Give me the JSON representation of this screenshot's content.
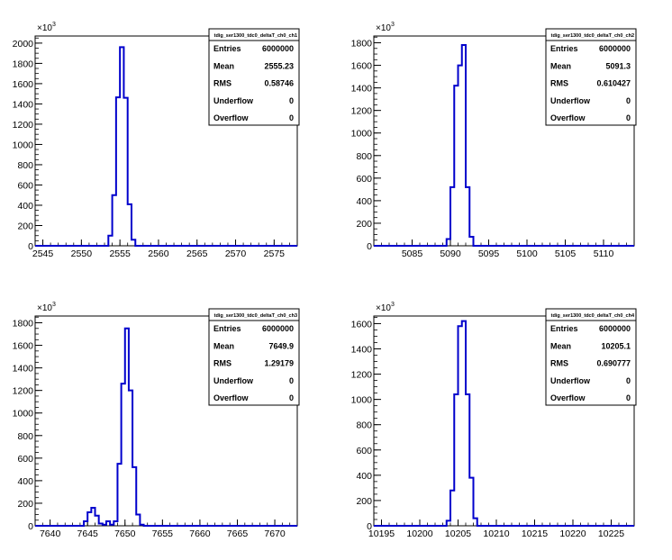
{
  "exponent_label": "×10",
  "exponent_power": "3",
  "stat_labels": [
    "Entries",
    "Mean",
    "RMS",
    "Underflow",
    "Overflow"
  ],
  "chart_data": [
    {
      "type": "histogram",
      "title": "tdig_ser1300_tdc0_deltaT_ch0_ch1",
      "xlim": [
        2544,
        2578
      ],
      "ylim": [
        0,
        2070
      ],
      "y_ticks": [
        0,
        200,
        400,
        600,
        800,
        1000,
        1200,
        1400,
        1600,
        1800,
        2000
      ],
      "y_tick_labels": [
        "0",
        "200",
        "400",
        "600",
        "800",
        "1000",
        "1200",
        "1400",
        "1600",
        "1800",
        "2000"
      ],
      "x_ticks": [
        2545,
        2550,
        2555,
        2560,
        2565,
        2570,
        2575
      ],
      "x_minor_step": 1,
      "y_minor_step": 50,
      "bin_width": 0.5,
      "bins": [
        [
          2553.5,
          100
        ],
        [
          2554.0,
          500
        ],
        [
          2554.5,
          1465
        ],
        [
          2555.0,
          1960
        ],
        [
          2555.5,
          1460
        ],
        [
          2556.0,
          410
        ],
        [
          2556.5,
          60
        ]
      ],
      "stats": {
        "Entries": "6000000",
        "Mean": "2555.23",
        "RMS": "0.58746",
        "Underflow": "0",
        "Overflow": "0"
      }
    },
    {
      "type": "histogram",
      "title": "tdig_ser1300_tdc0_deltaT_ch0_ch2",
      "xlim": [
        5080,
        5114
      ],
      "ylim": [
        0,
        1860
      ],
      "y_ticks": [
        0,
        200,
        400,
        600,
        800,
        1000,
        1200,
        1400,
        1600,
        1800
      ],
      "y_tick_labels": [
        "0",
        "200",
        "400",
        "600",
        "800",
        "1000",
        "1200",
        "1400",
        "1600",
        "1800"
      ],
      "x_ticks": [
        5085,
        5090,
        5095,
        5100,
        5105,
        5110
      ],
      "x_minor_step": 1,
      "y_minor_step": 50,
      "bin_width": 0.5,
      "bins": [
        [
          5089.5,
          60
        ],
        [
          5090.0,
          520
        ],
        [
          5090.5,
          1420
        ],
        [
          5091.0,
          1600
        ],
        [
          5091.5,
          1780
        ],
        [
          5092.0,
          520
        ],
        [
          5092.5,
          80
        ]
      ],
      "stats": {
        "Entries": "6000000",
        "Mean": "5091.3",
        "RMS": "0.610427",
        "Underflow": "0",
        "Overflow": "0"
      }
    },
    {
      "type": "histogram",
      "title": "tdig_ser1300_tdc0_deltaT_ch0_ch3",
      "xlim": [
        7638,
        7673
      ],
      "ylim": [
        0,
        1860
      ],
      "y_ticks": [
        0,
        200,
        400,
        600,
        800,
        1000,
        1200,
        1400,
        1600,
        1800
      ],
      "y_tick_labels": [
        "0",
        "200",
        "400",
        "600",
        "800",
        "1000",
        "1200",
        "1400",
        "1600",
        "1800"
      ],
      "x_ticks": [
        7640,
        7645,
        7650,
        7655,
        7660,
        7665,
        7670
      ],
      "x_minor_step": 1,
      "y_minor_step": 50,
      "bin_width": 0.5,
      "bins": [
        [
          7644.5,
          40
        ],
        [
          7645.0,
          120
        ],
        [
          7645.5,
          160
        ],
        [
          7646.0,
          90
        ],
        [
          7646.5,
          20
        ],
        [
          7647.0,
          10
        ],
        [
          7647.5,
          40
        ],
        [
          7648.0,
          10
        ],
        [
          7648.5,
          40
        ],
        [
          7649.0,
          550
        ],
        [
          7649.5,
          1260
        ],
        [
          7650.0,
          1750
        ],
        [
          7650.5,
          1200
        ],
        [
          7651.0,
          520
        ],
        [
          7651.5,
          100
        ],
        [
          7652.0,
          10
        ]
      ],
      "stats": {
        "Entries": "6000000",
        "Mean": "7649.9",
        "RMS": "1.29179",
        "Underflow": "0",
        "Overflow": "0"
      }
    },
    {
      "type": "histogram",
      "title": "tdig_ser1300_tdc0_deltaT_ch0_ch4",
      "xlim": [
        10194,
        10228
      ],
      "ylim": [
        0,
        1660
      ],
      "y_ticks": [
        0,
        200,
        400,
        600,
        800,
        1000,
        1200,
        1400,
        1600
      ],
      "y_tick_labels": [
        "0",
        "200",
        "400",
        "600",
        "800",
        "1000",
        "1200",
        "1400",
        "1600"
      ],
      "x_ticks": [
        10195,
        10200,
        10205,
        10210,
        10215,
        10220,
        10225
      ],
      "x_minor_step": 1,
      "y_minor_step": 50,
      "bin_width": 0.5,
      "bins": [
        [
          10203.5,
          40
        ],
        [
          10204.0,
          280
        ],
        [
          10204.5,
          1040
        ],
        [
          10205.0,
          1580
        ],
        [
          10205.5,
          1620
        ],
        [
          10206.0,
          1040
        ],
        [
          10206.5,
          380
        ],
        [
          10207.0,
          60
        ]
      ],
      "stats": {
        "Entries": "6000000",
        "Mean": "10205.1",
        "RMS": "0.690777",
        "Underflow": "0",
        "Overflow": "0"
      }
    }
  ]
}
